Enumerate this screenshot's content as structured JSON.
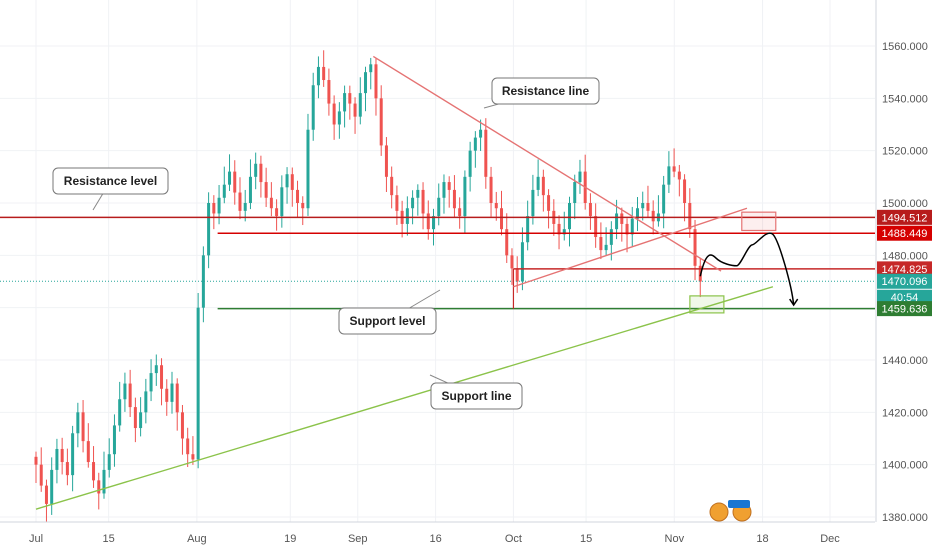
{
  "chart_data": {
    "type": "candlestick",
    "y_axis": {
      "ticks": [
        "1560.000",
        "1540.000",
        "1520.000",
        "1500.000",
        "1480.000",
        "1440.000",
        "1420.000",
        "1400.000",
        "1380.000"
      ],
      "tick_values": [
        1560,
        1540,
        1520,
        1500,
        1480,
        1440,
        1420,
        1400,
        1380
      ],
      "partial_label": "146"
    },
    "x_axis": {
      "ticks": [
        "Jul",
        "15",
        "Aug",
        "19",
        "Sep",
        "16",
        "Oct",
        "15",
        "Nov",
        "18",
        "Dec"
      ],
      "tick_dates": [
        "2019-07-01",
        "2019-07-15",
        "2019-08-01",
        "2019-08-19",
        "2019-09-01",
        "2019-09-16",
        "2019-10-01",
        "2019-10-15",
        "2019-11-01",
        "2019-11-18",
        "2019-12-01"
      ]
    },
    "price_tags": [
      {
        "value": "1494.512",
        "price": 1494.512,
        "color": "#b71c1c"
      },
      {
        "value": "1488.449",
        "price": 1488.449,
        "color": "#d50000"
      },
      {
        "value": "1474.825",
        "price": 1474.825,
        "color": "#c62828"
      },
      {
        "value": "1470.096",
        "price": 1470.096,
        "color": "#26a69a"
      },
      {
        "value": "40:54",
        "color": "#26a69a"
      },
      {
        "value": "1459.636",
        "price": 1459.636,
        "color": "#2e7d32"
      }
    ],
    "horizontal_lines": [
      {
        "name": "resistance-level-upper",
        "price": 1494.512,
        "color": "#b71c1c"
      },
      {
        "name": "resistance-level-lower",
        "price": 1488.449,
        "color": "#d50000"
      },
      {
        "name": "minor-resistance",
        "price": 1474.825,
        "color": "#c62828"
      },
      {
        "name": "support-level",
        "price": 1459.636,
        "color": "#2e7d32"
      },
      {
        "name": "last-price",
        "price": 1470.096,
        "color": "#26a69a",
        "dotted": true
      }
    ],
    "trendlines": [
      {
        "name": "resistance-line",
        "from": {
          "date": "2019-09-04",
          "price": 1556
        },
        "to": {
          "date": "2019-11-10",
          "price": 1474
        },
        "color": "#e57373"
      },
      {
        "name": "support-line",
        "from": {
          "date": "2019-07-01",
          "price": 1383
        },
        "to": {
          "date": "2019-11-20",
          "price": 1468
        },
        "color": "#8bc34a"
      },
      {
        "name": "triangle-lower",
        "from": {
          "date": "2019-10-01",
          "price": 1468
        },
        "to": {
          "date": "2019-11-15",
          "price": 1498
        },
        "color": "#e57373"
      }
    ],
    "annotations": [
      {
        "name": "resistance-line-callout",
        "text": "Resistance line"
      },
      {
        "name": "resistance-level-callout",
        "text": "Resistance level"
      },
      {
        "name": "support-level-callout",
        "text": "Support level"
      },
      {
        "name": "support-line-callout",
        "text": "Support line"
      }
    ],
    "projection": {
      "description_points": [
        {
          "date": "2019-11-06",
          "price": 1472
        },
        {
          "date": "2019-11-09",
          "price": 1479
        },
        {
          "date": "2019-11-13",
          "price": 1476
        },
        {
          "date": "2019-11-16",
          "price": 1484
        },
        {
          "date": "2019-11-20",
          "price": 1488
        },
        {
          "date": "2019-11-24",
          "price": 1461
        }
      ],
      "color": "#000000"
    },
    "series": [
      {
        "closes": [
          1400,
          1392,
          1385,
          1398,
          1406,
          1401,
          1396,
          1412,
          1420,
          1409,
          1401,
          1394,
          1389,
          1398,
          1404,
          1415,
          1425,
          1431,
          1422,
          1414,
          1420,
          1428,
          1435,
          1438,
          1429,
          1424,
          1431,
          1420,
          1410,
          1404,
          1402,
          1460,
          1480,
          1500,
          1496,
          1502,
          1507,
          1512,
          1504,
          1497,
          1500,
          1510,
          1515,
          1508,
          1502,
          1498,
          1495,
          1506,
          1511,
          1505,
          1500,
          1498,
          1528,
          1545,
          1552,
          1547,
          1538,
          1530,
          1535,
          1542,
          1538,
          1533,
          1542,
          1550,
          1553,
          1540,
          1522,
          1510,
          1503,
          1497,
          1492,
          1498,
          1502,
          1505,
          1496,
          1490,
          1495,
          1502,
          1508,
          1505,
          1498,
          1495,
          1510,
          1520,
          1525,
          1528,
          1510,
          1500,
          1498,
          1490,
          1480,
          1475,
          1470,
          1485,
          1495,
          1505,
          1510,
          1503,
          1497,
          1492,
          1488,
          1490,
          1500,
          1508,
          1512,
          1500,
          1495,
          1487,
          1482,
          1484,
          1490,
          1496,
          1492,
          1488,
          1494,
          1498,
          1500,
          1497,
          1493,
          1496,
          1507,
          1514,
          1512,
          1509,
          1500,
          1490,
          1476,
          1470
        ]
      }
    ]
  }
}
